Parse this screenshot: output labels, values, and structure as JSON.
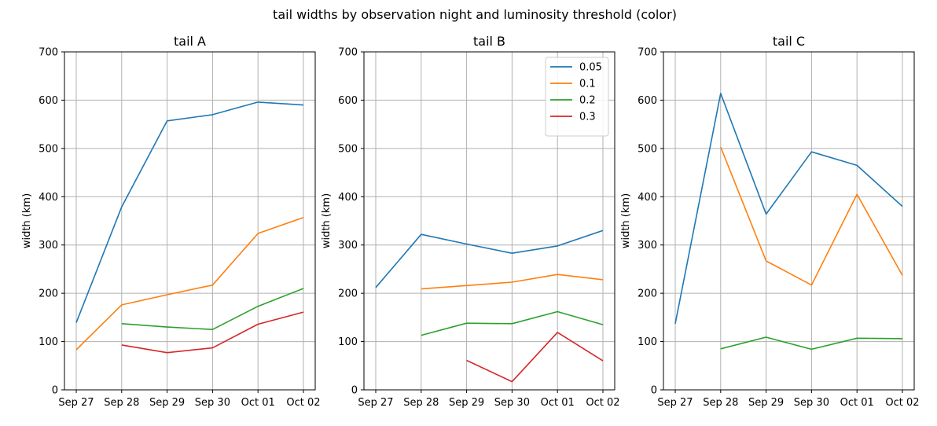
{
  "figure_title": "tail widths by observation night and luminosity threshold (color)",
  "legend": {
    "panel_index": 1,
    "entries": [
      {
        "label": "0.05",
        "color": "#1f77b4"
      },
      {
        "label": "0.1",
        "color": "#ff7f0e"
      },
      {
        "label": "0.2",
        "color": "#2ca02c"
      },
      {
        "label": "0.3",
        "color": "#d62728"
      }
    ]
  },
  "chart_data": [
    {
      "type": "line",
      "title": "tail A",
      "xlabel": "",
      "ylabel": "width (km)",
      "x": [
        "Sep 27",
        "Sep 28",
        "Sep 29",
        "Sep 30",
        "Oct 01",
        "Oct 02"
      ],
      "ylim": [
        0,
        700
      ],
      "yticks": [
        0,
        100,
        200,
        300,
        400,
        500,
        600,
        700
      ],
      "grid": true,
      "series": [
        {
          "name": "0.05",
          "color": "#1f77b4",
          "values": [
            139,
            379,
            557,
            570,
            596,
            590
          ]
        },
        {
          "name": "0.1",
          "color": "#ff7f0e",
          "values": [
            83,
            176,
            197,
            217,
            324,
            357
          ]
        },
        {
          "name": "0.2",
          "color": "#2ca02c",
          "values": [
            null,
            137,
            130,
            125,
            173,
            210
          ]
        },
        {
          "name": "0.3",
          "color": "#d62728",
          "values": [
            null,
            93,
            77,
            87,
            136,
            161
          ]
        }
      ]
    },
    {
      "type": "line",
      "title": "tail B",
      "xlabel": "",
      "ylabel": "width (km)",
      "x": [
        "Sep 27",
        "Sep 28",
        "Sep 29",
        "Sep 30",
        "Oct 01",
        "Oct 02"
      ],
      "ylim": [
        0,
        700
      ],
      "yticks": [
        0,
        100,
        200,
        300,
        400,
        500,
        600,
        700
      ],
      "grid": true,
      "legend": "upper right",
      "series": [
        {
          "name": "0.05",
          "color": "#1f77b4",
          "values": [
            212,
            322,
            302,
            283,
            298,
            330
          ]
        },
        {
          "name": "0.1",
          "color": "#ff7f0e",
          "values": [
            null,
            209,
            216,
            223,
            239,
            228
          ]
        },
        {
          "name": "0.2",
          "color": "#2ca02c",
          "values": [
            null,
            113,
            138,
            137,
            162,
            135
          ]
        },
        {
          "name": "0.3",
          "color": "#d62728",
          "values": [
            null,
            null,
            61,
            17,
            119,
            60
          ]
        }
      ]
    },
    {
      "type": "line",
      "title": "tail C",
      "xlabel": "",
      "ylabel": "width (km)",
      "x": [
        "Sep 27",
        "Sep 28",
        "Sep 29",
        "Sep 30",
        "Oct 01",
        "Oct 02"
      ],
      "ylim": [
        0,
        700
      ],
      "yticks": [
        0,
        100,
        200,
        300,
        400,
        500,
        600,
        700
      ],
      "grid": true,
      "series": [
        {
          "name": "0.05",
          "color": "#1f77b4",
          "values": [
            137,
            614,
            364,
            493,
            465,
            380
          ]
        },
        {
          "name": "0.1",
          "color": "#ff7f0e",
          "values": [
            null,
            503,
            267,
            217,
            405,
            237
          ]
        },
        {
          "name": "0.2",
          "color": "#2ca02c",
          "values": [
            null,
            85,
            109,
            84,
            107,
            106
          ]
        }
      ]
    }
  ]
}
